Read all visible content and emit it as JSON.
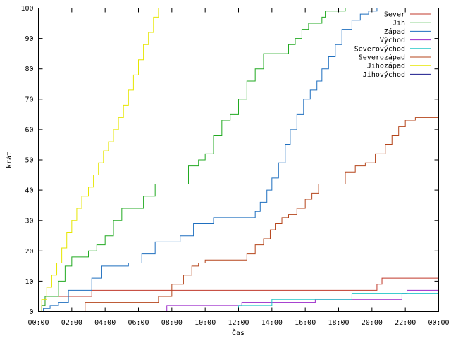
{
  "chart_data": {
    "type": "line",
    "interpolation": "step",
    "title": "",
    "xlabel": "Čas",
    "ylabel": "krát",
    "xlim": [
      0,
      24
    ],
    "ylim": [
      0,
      100
    ],
    "x_ticks": [
      {
        "value": 0,
        "label": "00:00"
      },
      {
        "value": 2,
        "label": "02:00"
      },
      {
        "value": 4,
        "label": "04:00"
      },
      {
        "value": 6,
        "label": "06:00"
      },
      {
        "value": 8,
        "label": "08:00"
      },
      {
        "value": 10,
        "label": "10:00"
      },
      {
        "value": 12,
        "label": "12:00"
      },
      {
        "value": 14,
        "label": "14:00"
      },
      {
        "value": 16,
        "label": "16:00"
      },
      {
        "value": 18,
        "label": "18:00"
      },
      {
        "value": 20,
        "label": "20:00"
      },
      {
        "value": 22,
        "label": "22:00"
      },
      {
        "value": 24,
        "label": "00:00"
      }
    ],
    "y_ticks": [
      0,
      10,
      20,
      30,
      40,
      50,
      60,
      70,
      80,
      90,
      100
    ],
    "grid": false,
    "legend_position": "top-right",
    "series": [
      {
        "name": "Sever",
        "color": "#c0392b",
        "x": [
          0,
          0.2,
          0.4,
          3.2,
          14.0,
          20.3,
          20.6,
          24
        ],
        "y": [
          0,
          2,
          5,
          7,
          7,
          9,
          11,
          11
        ]
      },
      {
        "name": "Jih",
        "color": "#22aa22",
        "x": [
          0,
          0.2,
          0.4,
          0.8,
          1.2,
          1.6,
          2.0,
          2.6,
          3.0,
          3.5,
          4.0,
          4.5,
          5.0,
          5.7,
          6.3,
          7.0,
          8.0,
          9.0,
          9.6,
          10.0,
          10.5,
          11.0,
          11.5,
          12.0,
          12.5,
          13.0,
          13.5,
          14.0,
          15.0,
          15.4,
          15.8,
          16.2,
          16.6,
          17.0,
          17.2,
          18.4
        ],
        "y": [
          0,
          2,
          5,
          5,
          10,
          15,
          18,
          18,
          20,
          22,
          25,
          30,
          34,
          34,
          38,
          42,
          42,
          48,
          50,
          52,
          58,
          63,
          65,
          70,
          76,
          80,
          85,
          85,
          88,
          90,
          93,
          95,
          95,
          97,
          99,
          100
        ]
      },
      {
        "name": "Západ",
        "color": "#1f6fbf",
        "x": [
          0,
          0.3,
          0.7,
          1.2,
          1.8,
          2.5,
          3.2,
          3.8,
          4.5,
          5.4,
          6.2,
          7.0,
          8.0,
          8.5,
          9.3,
          10.5,
          11.8,
          13.0,
          13.3,
          13.7,
          14.0,
          14.4,
          14.8,
          15.1,
          15.5,
          15.9,
          16.3,
          16.7,
          17.0,
          17.4,
          17.8,
          18.2,
          18.8,
          19.3,
          19.8,
          20.3
        ],
        "y": [
          0,
          1,
          2,
          3,
          7,
          7,
          11,
          15,
          15,
          16,
          19,
          23,
          23,
          25,
          29,
          31,
          31,
          33,
          36,
          40,
          44,
          49,
          55,
          60,
          65,
          70,
          73,
          76,
          80,
          84,
          88,
          93,
          96,
          98,
          99,
          100
        ]
      },
      {
        "name": "Východ",
        "color": "#9b27c9",
        "x": [
          0,
          7.7,
          12.2,
          16.6,
          21.8,
          22.1,
          24
        ],
        "y": [
          0,
          2,
          3,
          4,
          6,
          7,
          7
        ]
      },
      {
        "name": "Severovýchod",
        "color": "#22c7c7",
        "x": [
          0,
          12.0,
          13.2,
          14.0,
          18.8,
          22.6,
          24
        ],
        "y": [
          0,
          2,
          2,
          4,
          6,
          6,
          6
        ]
      },
      {
        "name": "Severozápad",
        "color": "#b5451b",
        "x": [
          0,
          2.8,
          7.2,
          8.0,
          8.7,
          9.2,
          9.6,
          10.0,
          10.6,
          11.2,
          12.5,
          13.0,
          13.5,
          13.9,
          14.2,
          14.6,
          15.0,
          15.5,
          16.0,
          16.4,
          16.8,
          17.2,
          18.4,
          19.0,
          19.6,
          20.2,
          20.8,
          21.2,
          21.6,
          22.0,
          22.6,
          24
        ],
        "y": [
          0,
          3,
          5,
          9,
          12,
          15,
          16,
          17,
          17,
          17,
          19,
          22,
          24,
          27,
          29,
          31,
          32,
          34,
          37,
          39,
          42,
          42,
          46,
          48,
          49,
          52,
          55,
          58,
          61,
          63,
          64,
          64
        ]
      },
      {
        "name": "Jihozápad",
        "color": "#e6e600",
        "x": [
          0,
          0.2,
          0.5,
          0.8,
          1.1,
          1.4,
          1.7,
          2.0,
          2.3,
          2.6,
          3.0,
          3.3,
          3.6,
          3.9,
          4.2,
          4.5,
          4.8,
          5.1,
          5.4,
          5.7,
          6.0,
          6.3,
          6.6,
          6.9,
          7.2
        ],
        "y": [
          0,
          4,
          8,
          12,
          16,
          21,
          26,
          30,
          34,
          38,
          41,
          45,
          49,
          53,
          56,
          60,
          64,
          68,
          73,
          78,
          83,
          88,
          92,
          97,
          100
        ]
      },
      {
        "name": "Jihovýchod",
        "color": "#1a1a8c",
        "x": [
          0,
          24
        ],
        "y": [
          0,
          0
        ]
      }
    ]
  }
}
